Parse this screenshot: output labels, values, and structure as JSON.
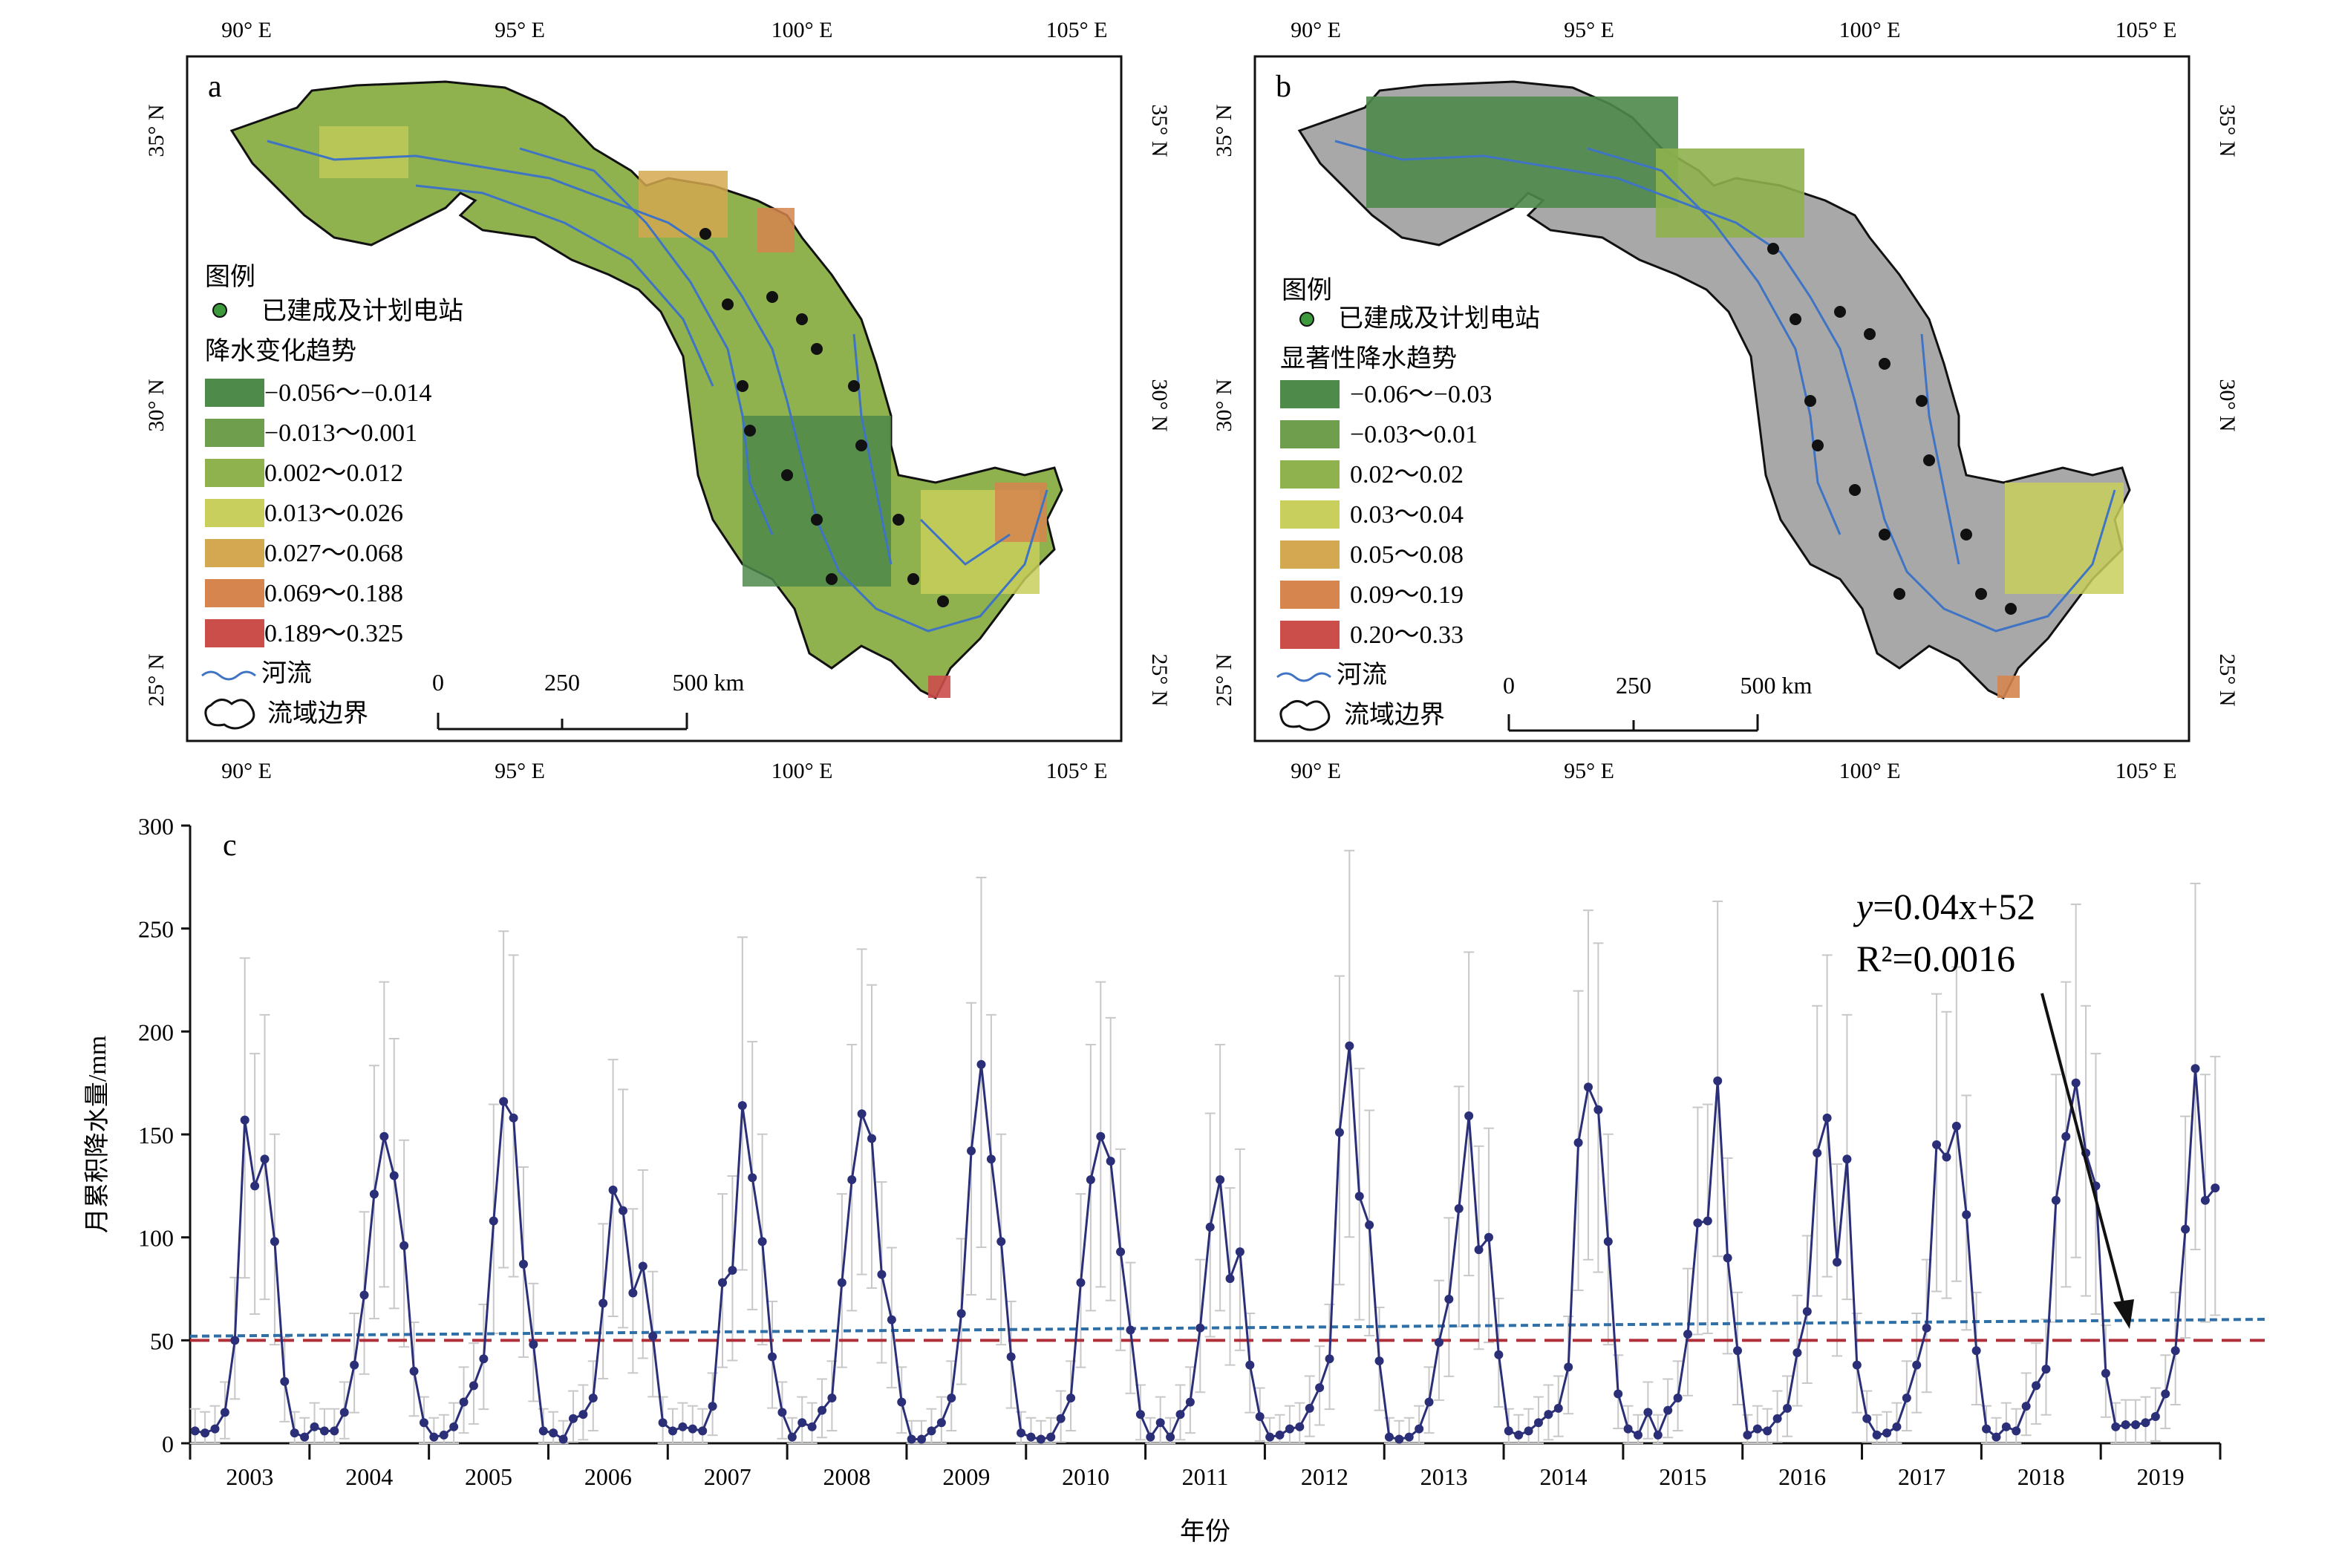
{
  "panel_a": {
    "label": "a",
    "top_ticks": [
      "90° E",
      "95° E",
      "100° E",
      "105° E"
    ],
    "bottom_ticks": [
      "90° E",
      "95° E",
      "100° E",
      "105° E"
    ],
    "left_ticks": [
      "35° N",
      "30° N",
      "25° N"
    ],
    "right_ticks": [
      "35° N",
      "30° N",
      "25° N"
    ],
    "legend": {
      "title": "图例",
      "station": "已建成及计划电站",
      "ramp_title": "降水变化趋势",
      "classes": [
        {
          "label": "−0.056～−0.014",
          "color": "#4e8a4a"
        },
        {
          "label": "−0.013～0.001",
          "color": "#6f9e4c"
        },
        {
          "label": "0.002～0.012",
          "color": "#8fb14e"
        },
        {
          "label": "0.013～0.026",
          "color": "#c9cf5c"
        },
        {
          "label": "0.027～0.068",
          "color": "#d4a850"
        },
        {
          "label": "0.069～0.188",
          "color": "#d6854f"
        },
        {
          "label": "0.189～0.325",
          "color": "#cc4e4b"
        }
      ],
      "river": "河流",
      "boundary": "流域边界"
    },
    "scale": {
      "ticks": [
        "0",
        "250",
        "500 km"
      ]
    }
  },
  "panel_b": {
    "label": "b",
    "top_ticks": [
      "90° E",
      "95° E",
      "100° E",
      "105° E"
    ],
    "bottom_ticks": [
      "90° E",
      "95° E",
      "100° E",
      "105° E"
    ],
    "left_ticks": [
      "35° N",
      "30° N",
      "25° N"
    ],
    "right_ticks": [
      "35° N",
      "30° N",
      "25° N"
    ],
    "legend": {
      "title": "图例",
      "station": "已建成及计划电站",
      "ramp_title": "显著性降水趋势",
      "classes": [
        {
          "label": "−0.06～−0.03",
          "color": "#4e8a4a"
        },
        {
          "label": "−0.03～0.01",
          "color": "#6f9e4c"
        },
        {
          "label": "0.02～0.02",
          "color": "#8fb14e"
        },
        {
          "label": "0.03～0.04",
          "color": "#c9cf5c"
        },
        {
          "label": "0.05～0.08",
          "color": "#d4a850"
        },
        {
          "label": "0.09～0.19",
          "color": "#d6854f"
        },
        {
          "label": "0.20～0.33",
          "color": "#cc4e4b"
        }
      ],
      "river": "河流",
      "boundary": "流域边界"
    },
    "scale": {
      "ticks": [
        "0",
        "250",
        "500 km"
      ]
    }
  },
  "panel_c": {
    "label": "c",
    "equation_y": "y",
    "equation_rest": "=0.04x+52",
    "r2_text": "R²=0.0016"
  },
  "chart_data": {
    "type": "line",
    "ylabel": "月累积降水量/mm",
    "xlabel": "年份",
    "ylim": [
      0,
      300
    ],
    "yticks": [
      0,
      50,
      100,
      150,
      200,
      250,
      300
    ],
    "years": [
      "2003",
      "2004",
      "2005",
      "2006",
      "2007",
      "2008",
      "2009",
      "2010",
      "2011",
      "2012",
      "2013",
      "2014",
      "2015",
      "2016",
      "2017",
      "2018",
      "2019"
    ],
    "series": [
      {
        "kind": "monthly",
        "values": [
          [
            6,
            5,
            7,
            15,
            50,
            157,
            125,
            138,
            98,
            30,
            5,
            3
          ],
          [
            8,
            6,
            6,
            15,
            38,
            72,
            121,
            149,
            130,
            96,
            35,
            10
          ],
          [
            3,
            4,
            8,
            20,
            28,
            41,
            108,
            166,
            158,
            87,
            48,
            6
          ],
          [
            5,
            2,
            12,
            14,
            22,
            68,
            123,
            113,
            73,
            86,
            52,
            10
          ],
          [
            6,
            8,
            7,
            6,
            18,
            78,
            84,
            164,
            129,
            98,
            42,
            15
          ],
          [
            3,
            10,
            8,
            16,
            22,
            78,
            128,
            160,
            148,
            82,
            60,
            20
          ],
          [
            2,
            2,
            6,
            10,
            22,
            63,
            142,
            184,
            138,
            98,
            42,
            5
          ],
          [
            3,
            2,
            3,
            12,
            22,
            78,
            128,
            149,
            137,
            93,
            55,
            14
          ],
          [
            3,
            10,
            3,
            14,
            20,
            56,
            105,
            128,
            80,
            93,
            38,
            13
          ],
          [
            3,
            4,
            7,
            8,
            17,
            27,
            41,
            151,
            193,
            120,
            106,
            40
          ],
          [
            3,
            2,
            3,
            7,
            20,
            49,
            70,
            114,
            159,
            94,
            100,
            43
          ],
          [
            6,
            4,
            6,
            10,
            14,
            17,
            37,
            146,
            173,
            162,
            98,
            24
          ],
          [
            7,
            4,
            15,
            4,
            16,
            22,
            53,
            107,
            108,
            176,
            90,
            45
          ],
          [
            4,
            7,
            6,
            12,
            17,
            44,
            64,
            141,
            158,
            88,
            138,
            38
          ],
          [
            12,
            4,
            5,
            8,
            22,
            38,
            56,
            145,
            139,
            154,
            111,
            45
          ],
          [
            7,
            3,
            8,
            6,
            18,
            28,
            36,
            118,
            149,
            175,
            141,
            125
          ],
          [
            34,
            8,
            9,
            9,
            10,
            13,
            24,
            45,
            104,
            182,
            118,
            124
          ]
        ]
      },
      {
        "name": "trend",
        "equation": "y=0.04x+52",
        "y_start": 52,
        "y_end": 60.2
      },
      {
        "name": "reference",
        "value": 50
      }
    ]
  }
}
